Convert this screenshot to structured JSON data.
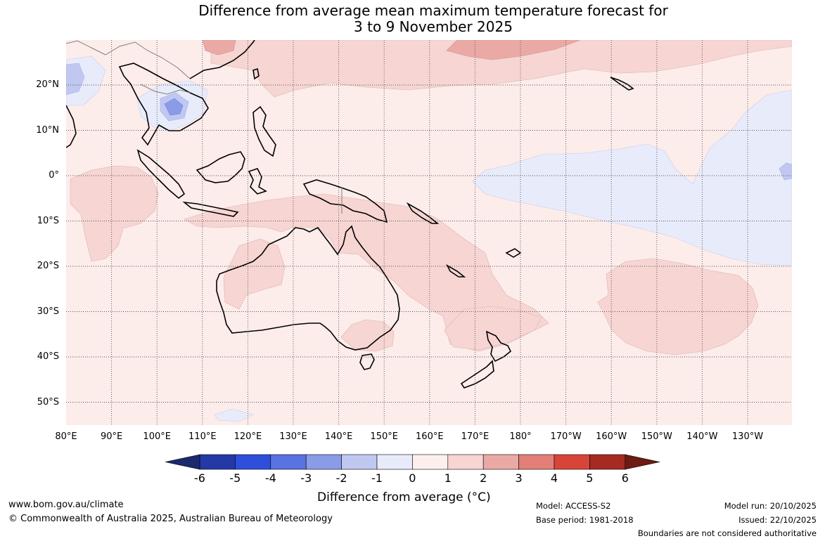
{
  "title": {
    "line1": "Difference from average mean maximum temperature forecast for",
    "line2": "3 to 9 November 2025"
  },
  "axes": {
    "lat_labels": [
      "20°N",
      "10°N",
      "0°",
      "10°S",
      "20°S",
      "30°S",
      "40°S",
      "50°S"
    ],
    "lon_labels": [
      "80°E",
      "90°E",
      "100°E",
      "110°E",
      "120°E",
      "130°E",
      "140°E",
      "150°E",
      "160°E",
      "170°E",
      "180°",
      "170°W",
      "160°W",
      "150°W",
      "140°W",
      "130°W"
    ]
  },
  "colorbar": {
    "ticks": [
      "-6",
      "-5",
      "-4",
      "-3",
      "-2",
      "-1",
      "0",
      "1",
      "2",
      "3",
      "4",
      "5",
      "6"
    ],
    "colors": [
      "#2439a6",
      "#2e4fdc",
      "#5a73e2",
      "#8a9be8",
      "#c0c8f2",
      "#e8ebfa",
      "#fcefee",
      "#f6d5d3",
      "#eba9a5",
      "#e37f78",
      "#d94438",
      "#a52a22"
    ],
    "under_color": "#1a2a6e",
    "over_color": "#6e1a15",
    "label": "Difference from average (°C)"
  },
  "map": {
    "background_color": "#fcecea",
    "anomaly_regions": [
      "warm anomaly +1 to +2 °C over northern and eastern Australia, Coral Sea, Tasman Sea and central South Pacific",
      "warm anomaly +2 to +3 °C north of 25°N in the western Pacific",
      "cool anomaly -1 to 0 °C over equatorial central Pacific and southern Vietnam",
      "cool anomaly -3 to -2 °C over the southern Indochina peninsula"
    ]
  },
  "footer": {
    "url": "www.bom.gov.au/climate",
    "copyright": "© Commonwealth of Australia 2025, Australian Bureau of Meteorology",
    "model": "Model: ACCESS-S2",
    "base_period": "Base period: 1981-2018",
    "model_run": "Model run: 20/10/2025",
    "issued": "Issued: 22/10/2025",
    "disclaimer": "Boundaries are not considered authoritative"
  }
}
